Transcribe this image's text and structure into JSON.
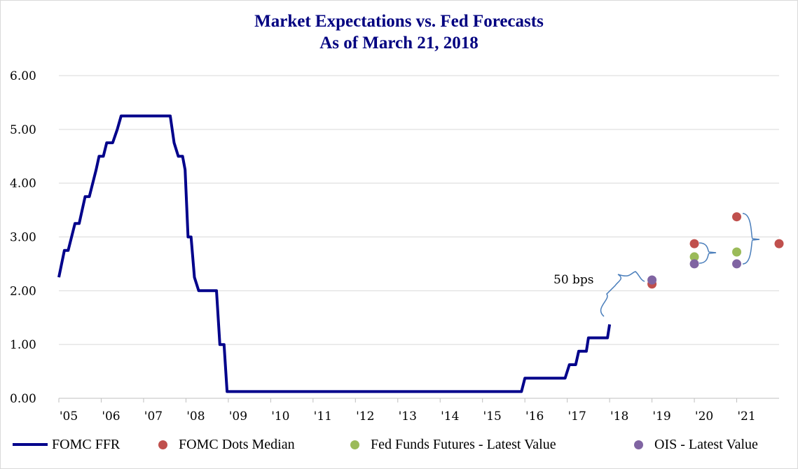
{
  "chart_data": {
    "type": "line",
    "title": "Market Expectations vs. Fed Forecasts",
    "subtitle": "As of March 21, 2018",
    "ylim": [
      0,
      6
    ],
    "yticks": [
      "0.00",
      "1.00",
      "2.00",
      "3.00",
      "4.00",
      "5.00",
      "6.00"
    ],
    "xlim": [
      2005,
      2022
    ],
    "xticks": [
      {
        "x": 2005,
        "label": "'05"
      },
      {
        "x": 2006,
        "label": "'06"
      },
      {
        "x": 2007,
        "label": "'07"
      },
      {
        "x": 2008,
        "label": "'08"
      },
      {
        "x": 2009,
        "label": "'09"
      },
      {
        "x": 2010,
        "label": "'10"
      },
      {
        "x": 2011,
        "label": "'11"
      },
      {
        "x": 2012,
        "label": "'12"
      },
      {
        "x": 2013,
        "label": "'13"
      },
      {
        "x": 2014,
        "label": "'14"
      },
      {
        "x": 2015,
        "label": "'15"
      },
      {
        "x": 2016,
        "label": "'16"
      },
      {
        "x": 2017,
        "label": "'17"
      },
      {
        "x": 2018,
        "label": "'18"
      },
      {
        "x": 2019,
        "label": "'19"
      },
      {
        "x": 2020,
        "label": "'20"
      },
      {
        "x": 2021,
        "label": "'21"
      }
    ],
    "grid": true,
    "legend_position": "bottom",
    "series": [
      {
        "name": "FOMC FFR",
        "kind": "line",
        "color": "#00008b",
        "points": [
          [
            2005.0,
            2.25
          ],
          [
            2005.13,
            2.75
          ],
          [
            2005.22,
            2.75
          ],
          [
            2005.38,
            3.25
          ],
          [
            2005.48,
            3.25
          ],
          [
            2005.62,
            3.75
          ],
          [
            2005.72,
            3.75
          ],
          [
            2005.88,
            4.25
          ],
          [
            2005.95,
            4.5
          ],
          [
            2006.05,
            4.5
          ],
          [
            2006.13,
            4.75
          ],
          [
            2006.27,
            4.75
          ],
          [
            2006.38,
            5.0
          ],
          [
            2006.47,
            5.25
          ],
          [
            2007.63,
            5.25
          ],
          [
            2007.72,
            4.75
          ],
          [
            2007.82,
            4.5
          ],
          [
            2007.92,
            4.5
          ],
          [
            2007.98,
            4.25
          ],
          [
            2008.05,
            3.0
          ],
          [
            2008.12,
            3.0
          ],
          [
            2008.2,
            2.25
          ],
          [
            2008.3,
            2.0
          ],
          [
            2008.72,
            2.0
          ],
          [
            2008.8,
            1.0
          ],
          [
            2008.9,
            1.0
          ],
          [
            2008.97,
            0.125
          ],
          [
            2015.92,
            0.125
          ],
          [
            2016.0,
            0.375
          ],
          [
            2016.95,
            0.375
          ],
          [
            2017.05,
            0.625
          ],
          [
            2017.2,
            0.625
          ],
          [
            2017.27,
            0.875
          ],
          [
            2017.45,
            0.875
          ],
          [
            2017.5,
            1.125
          ],
          [
            2017.95,
            1.125
          ],
          [
            2018.0,
            1.375
          ]
        ]
      },
      {
        "name": "FOMC Dots Median",
        "kind": "scatter",
        "color": "#c0504d",
        "points": [
          [
            2019.0,
            2.125
          ],
          [
            2020.0,
            2.875
          ],
          [
            2021.0,
            3.375
          ],
          [
            2022.0,
            2.875
          ]
        ]
      },
      {
        "name": "Fed Funds Futures - Latest Value",
        "kind": "scatter",
        "color": "#9bbb59",
        "points": [
          [
            2020.0,
            2.63
          ],
          [
            2021.0,
            2.72
          ]
        ]
      },
      {
        "name": "OIS - Latest Value",
        "kind": "scatter",
        "color": "#8064a2",
        "points": [
          [
            2019.0,
            2.2
          ],
          [
            2020.0,
            2.5
          ],
          [
            2021.0,
            2.5
          ]
        ]
      }
    ],
    "annotations": [
      {
        "text": "50 bps"
      }
    ]
  }
}
